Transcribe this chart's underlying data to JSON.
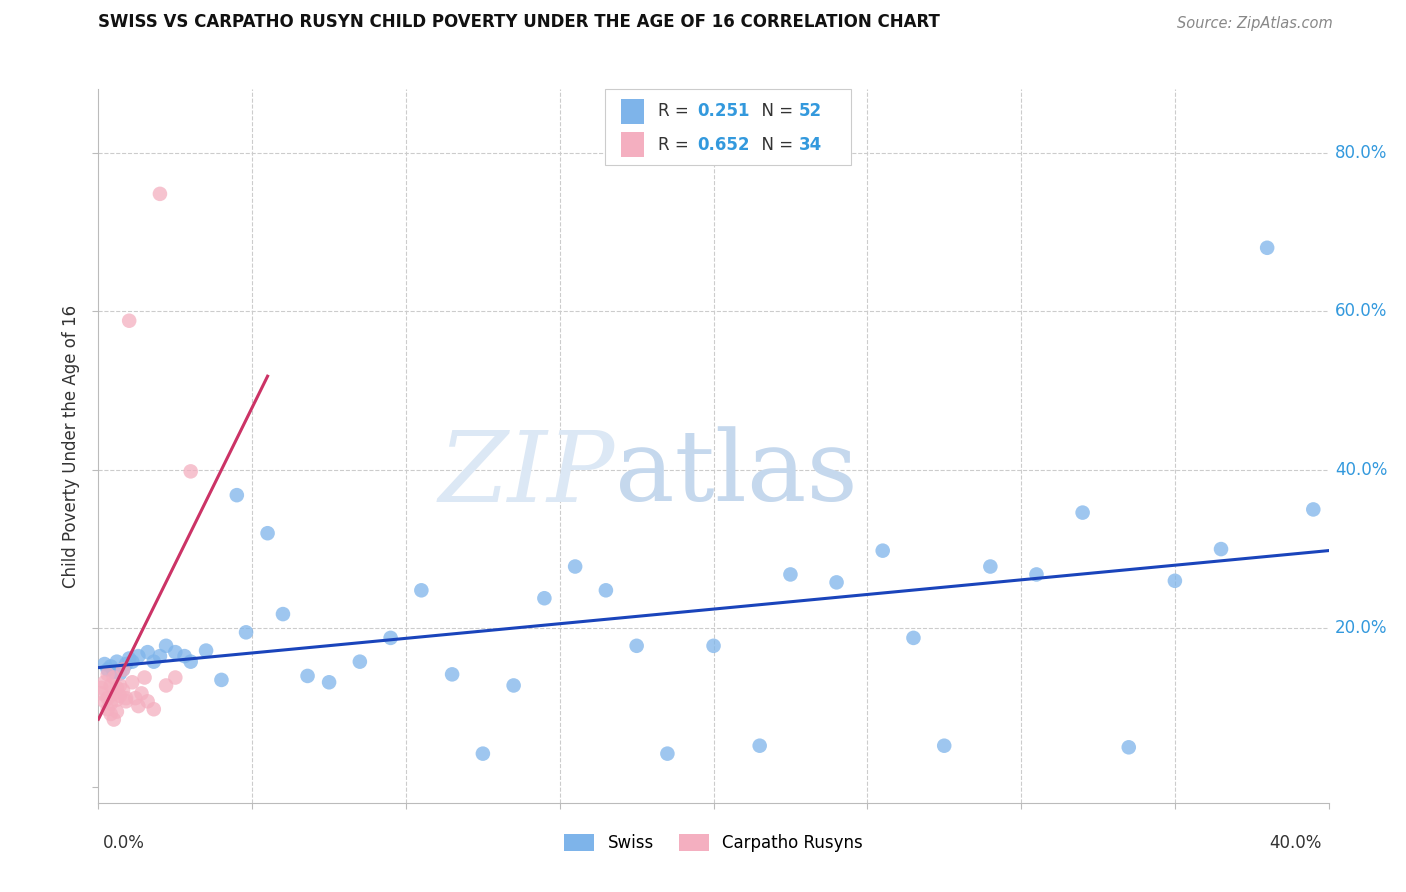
{
  "title": "SWISS VS CARPATHO RUSYN CHILD POVERTY UNDER THE AGE OF 16 CORRELATION CHART",
  "source": "Source: ZipAtlas.com",
  "ylabel": "Child Poverty Under the Age of 16",
  "xlim": [
    0.0,
    0.4
  ],
  "ylim": [
    -0.02,
    0.88
  ],
  "yticks": [
    0.0,
    0.2,
    0.4,
    0.6,
    0.8
  ],
  "ytick_labels": [
    "",
    "20.0%",
    "40.0%",
    "60.0%",
    "80.0%"
  ],
  "background_color": "#ffffff",
  "swiss_color": "#7eb4ea",
  "carpatho_color": "#f4afc0",
  "swiss_line_color": "#1a44bb",
  "carpatho_line_color": "#cc3366",
  "swiss_R": 0.251,
  "swiss_N": 52,
  "carpatho_R": 0.652,
  "carpatho_N": 34,
  "swiss_x": [
    0.002,
    0.003,
    0.004,
    0.005,
    0.006,
    0.007,
    0.008,
    0.009,
    0.01,
    0.011,
    0.013,
    0.016,
    0.018,
    0.02,
    0.022,
    0.025,
    0.028,
    0.03,
    0.035,
    0.04,
    0.045,
    0.048,
    0.055,
    0.06,
    0.068,
    0.075,
    0.085,
    0.095,
    0.105,
    0.115,
    0.125,
    0.135,
    0.145,
    0.155,
    0.165,
    0.175,
    0.185,
    0.2,
    0.215,
    0.225,
    0.24,
    0.255,
    0.265,
    0.275,
    0.29,
    0.305,
    0.32,
    0.335,
    0.35,
    0.365,
    0.38,
    0.395
  ],
  "swiss_y": [
    0.155,
    0.148,
    0.152,
    0.145,
    0.158,
    0.143,
    0.148,
    0.155,
    0.162,
    0.158,
    0.165,
    0.17,
    0.158,
    0.165,
    0.178,
    0.17,
    0.165,
    0.158,
    0.172,
    0.135,
    0.368,
    0.195,
    0.32,
    0.218,
    0.14,
    0.132,
    0.158,
    0.188,
    0.248,
    0.142,
    0.042,
    0.128,
    0.238,
    0.278,
    0.248,
    0.178,
    0.042,
    0.178,
    0.052,
    0.268,
    0.258,
    0.298,
    0.188,
    0.052,
    0.278,
    0.268,
    0.346,
    0.05,
    0.26,
    0.3,
    0.68,
    0.35
  ],
  "carpatho_x": [
    0.001,
    0.001,
    0.002,
    0.002,
    0.003,
    0.003,
    0.003,
    0.004,
    0.004,
    0.004,
    0.005,
    0.005,
    0.005,
    0.006,
    0.006,
    0.006,
    0.007,
    0.007,
    0.008,
    0.008,
    0.009,
    0.009,
    0.01,
    0.011,
    0.012,
    0.013,
    0.014,
    0.015,
    0.016,
    0.018,
    0.02,
    0.022,
    0.025,
    0.03
  ],
  "carpatho_y": [
    0.125,
    0.118,
    0.132,
    0.108,
    0.142,
    0.112,
    0.098,
    0.128,
    0.092,
    0.105,
    0.138,
    0.118,
    0.085,
    0.125,
    0.11,
    0.095,
    0.128,
    0.115,
    0.148,
    0.122,
    0.108,
    0.112,
    0.588,
    0.132,
    0.112,
    0.102,
    0.118,
    0.138,
    0.108,
    0.098,
    0.748,
    0.128,
    0.138,
    0.398
  ]
}
